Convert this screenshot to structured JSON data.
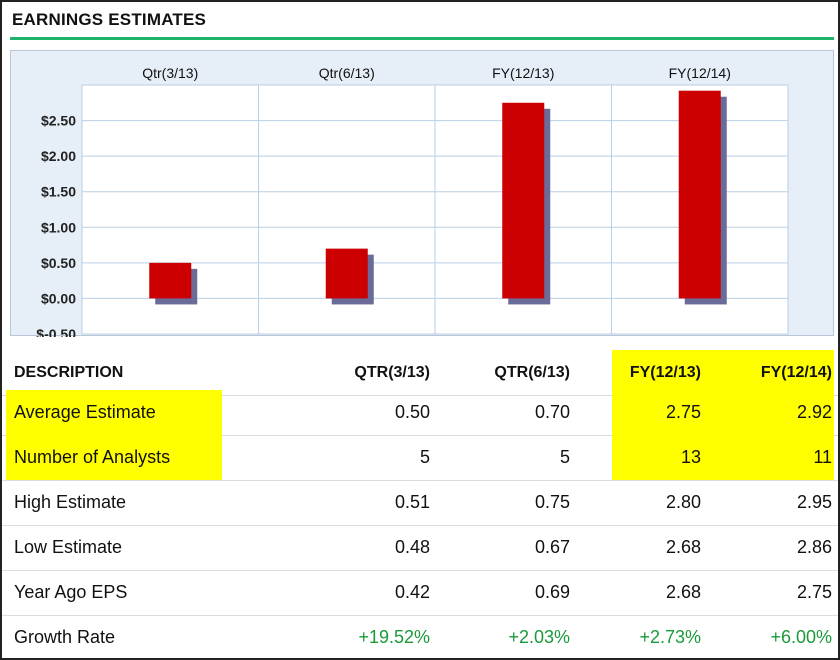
{
  "header": {
    "title": "EARNINGS ESTIMATES"
  },
  "colors": {
    "bar": "#cc0000",
    "shadow": "#6b6b9a",
    "highlight": "#ffff00",
    "rule": "#20b36a",
    "growth": "#1a9a3a",
    "plot_bg": "#ffffff",
    "frame_bg": "#e6eef7",
    "grid": "#b9cfe6"
  },
  "chart_data": {
    "type": "bar",
    "categories": [
      "Qtr(3/13)",
      "Qtr(6/13)",
      "FY(12/13)",
      "FY(12/14)"
    ],
    "values": [
      0.5,
      0.7,
      2.75,
      2.92
    ],
    "yticks": [
      "$2.50",
      "$2.00",
      "$1.50",
      "$1.00",
      "$0.50",
      "$0.00",
      "$-0.50"
    ],
    "ylim": [
      -0.5,
      3.0
    ],
    "grid": true,
    "title": "",
    "xlabel": "",
    "ylabel": ""
  },
  "table": {
    "headers": [
      "DESCRIPTION",
      "QTR(3/13)",
      "QTR(6/13)",
      "FY(12/13)",
      "FY(12/14)"
    ],
    "rows": [
      {
        "label": "Average Estimate",
        "values": [
          "0.50",
          "0.70",
          "2.75",
          "2.92"
        ]
      },
      {
        "label": "Number of Analysts",
        "values": [
          "5",
          "5",
          "13",
          "11"
        ]
      },
      {
        "label": "High Estimate",
        "values": [
          "0.51",
          "0.75",
          "2.80",
          "2.95"
        ]
      },
      {
        "label": "Low Estimate",
        "values": [
          "0.48",
          "0.67",
          "2.68",
          "2.86"
        ]
      },
      {
        "label": "Year Ago EPS",
        "values": [
          "0.42",
          "0.69",
          "2.68",
          "2.75"
        ]
      },
      {
        "label": "Growth Rate",
        "values": [
          "+19.52%",
          "+2.03%",
          "+2.73%",
          "+6.00%"
        ]
      }
    ]
  }
}
